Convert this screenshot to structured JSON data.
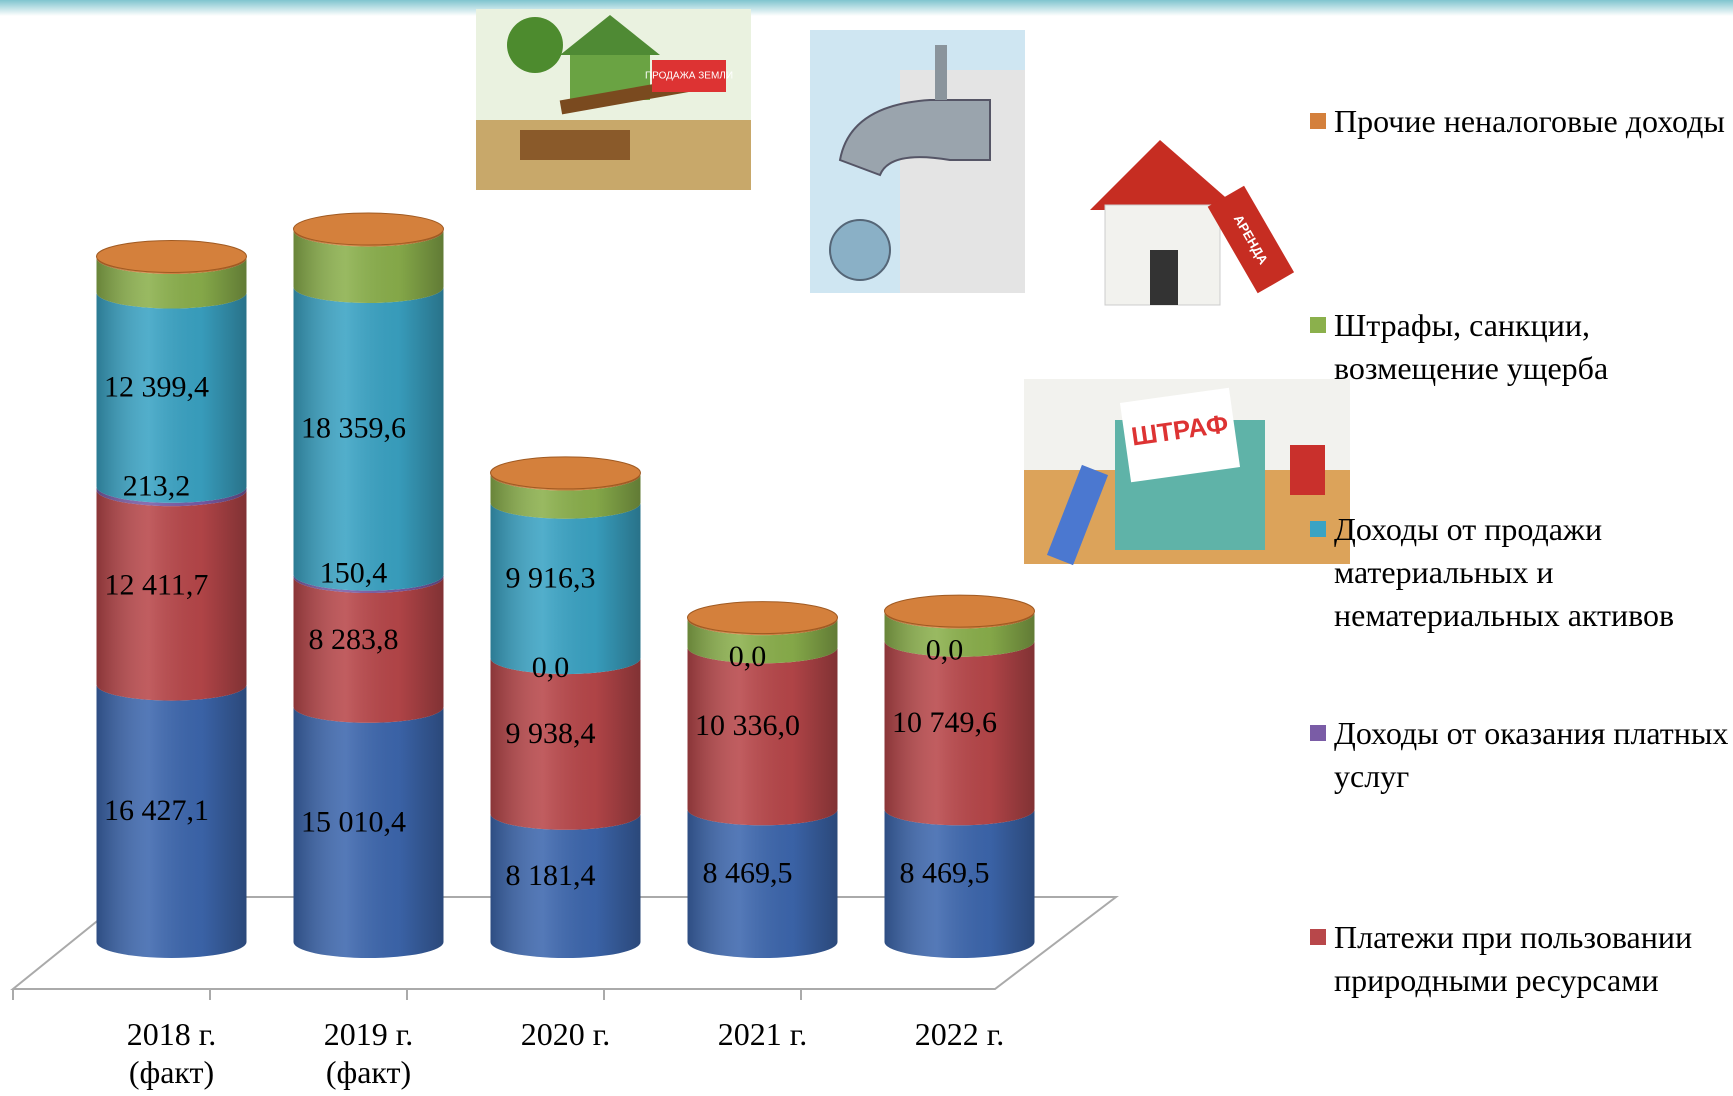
{
  "chart_data": {
    "type": "stacked_cylinder",
    "categories": [
      "2018 г. (факт)",
      "2019 г. (факт)",
      "2020 г.",
      "2021 г.",
      "2022 г."
    ],
    "series": [
      {
        "color": "#3d67ae",
        "values": [
          16427.1,
          15010.4,
          8181.4,
          8469.5,
          8469.5
        ],
        "value_labels": [
          "16 427,1",
          "15 010,4",
          "8 181,4",
          "8 469,5",
          "8 469,5"
        ]
      },
      {
        "name": "Платежи при пользовании природными ресурсами",
        "color": "#b8474a",
        "values": [
          12411.7,
          8283.8,
          9938.4,
          10336.0,
          10749.6
        ],
        "value_labels": [
          "12 411,7",
          "8 283,8",
          "9 938,4",
          "10 336,0",
          "10 749,6"
        ]
      },
      {
        "name": "Доходы от оказания платных услуг",
        "color": "#7a5ca6",
        "values": [
          213.2,
          150.4,
          0.0,
          0.0,
          0.0
        ],
        "value_labels": [
          "213,2",
          "150,4",
          "0,0",
          "0,0",
          "0,0"
        ]
      },
      {
        "name": "Доходы от продажи материальных и нематериальных активов",
        "color": "#3aa3c4",
        "values": [
          12399.4,
          18359.6,
          9916.3,
          null,
          null
        ],
        "value_labels": [
          "12 399,4",
          "18 359,6",
          "9 916,3",
          null,
          null
        ]
      },
      {
        "name": "Штрафы, санкции, возмещение ущерба",
        "color": "#8bb04c",
        "values": [
          2200,
          3600,
          1800,
          1800,
          1800
        ]
      },
      {
        "name": "Прочие неналоговые доходы",
        "color": "#d4803c",
        "values": [
          100,
          100,
          100,
          100,
          100
        ]
      }
    ]
  },
  "image_texts": [
    "ПРОДАЖА ЗЕМЛИ",
    "АРЕНДА",
    "ШТРАФ"
  ]
}
